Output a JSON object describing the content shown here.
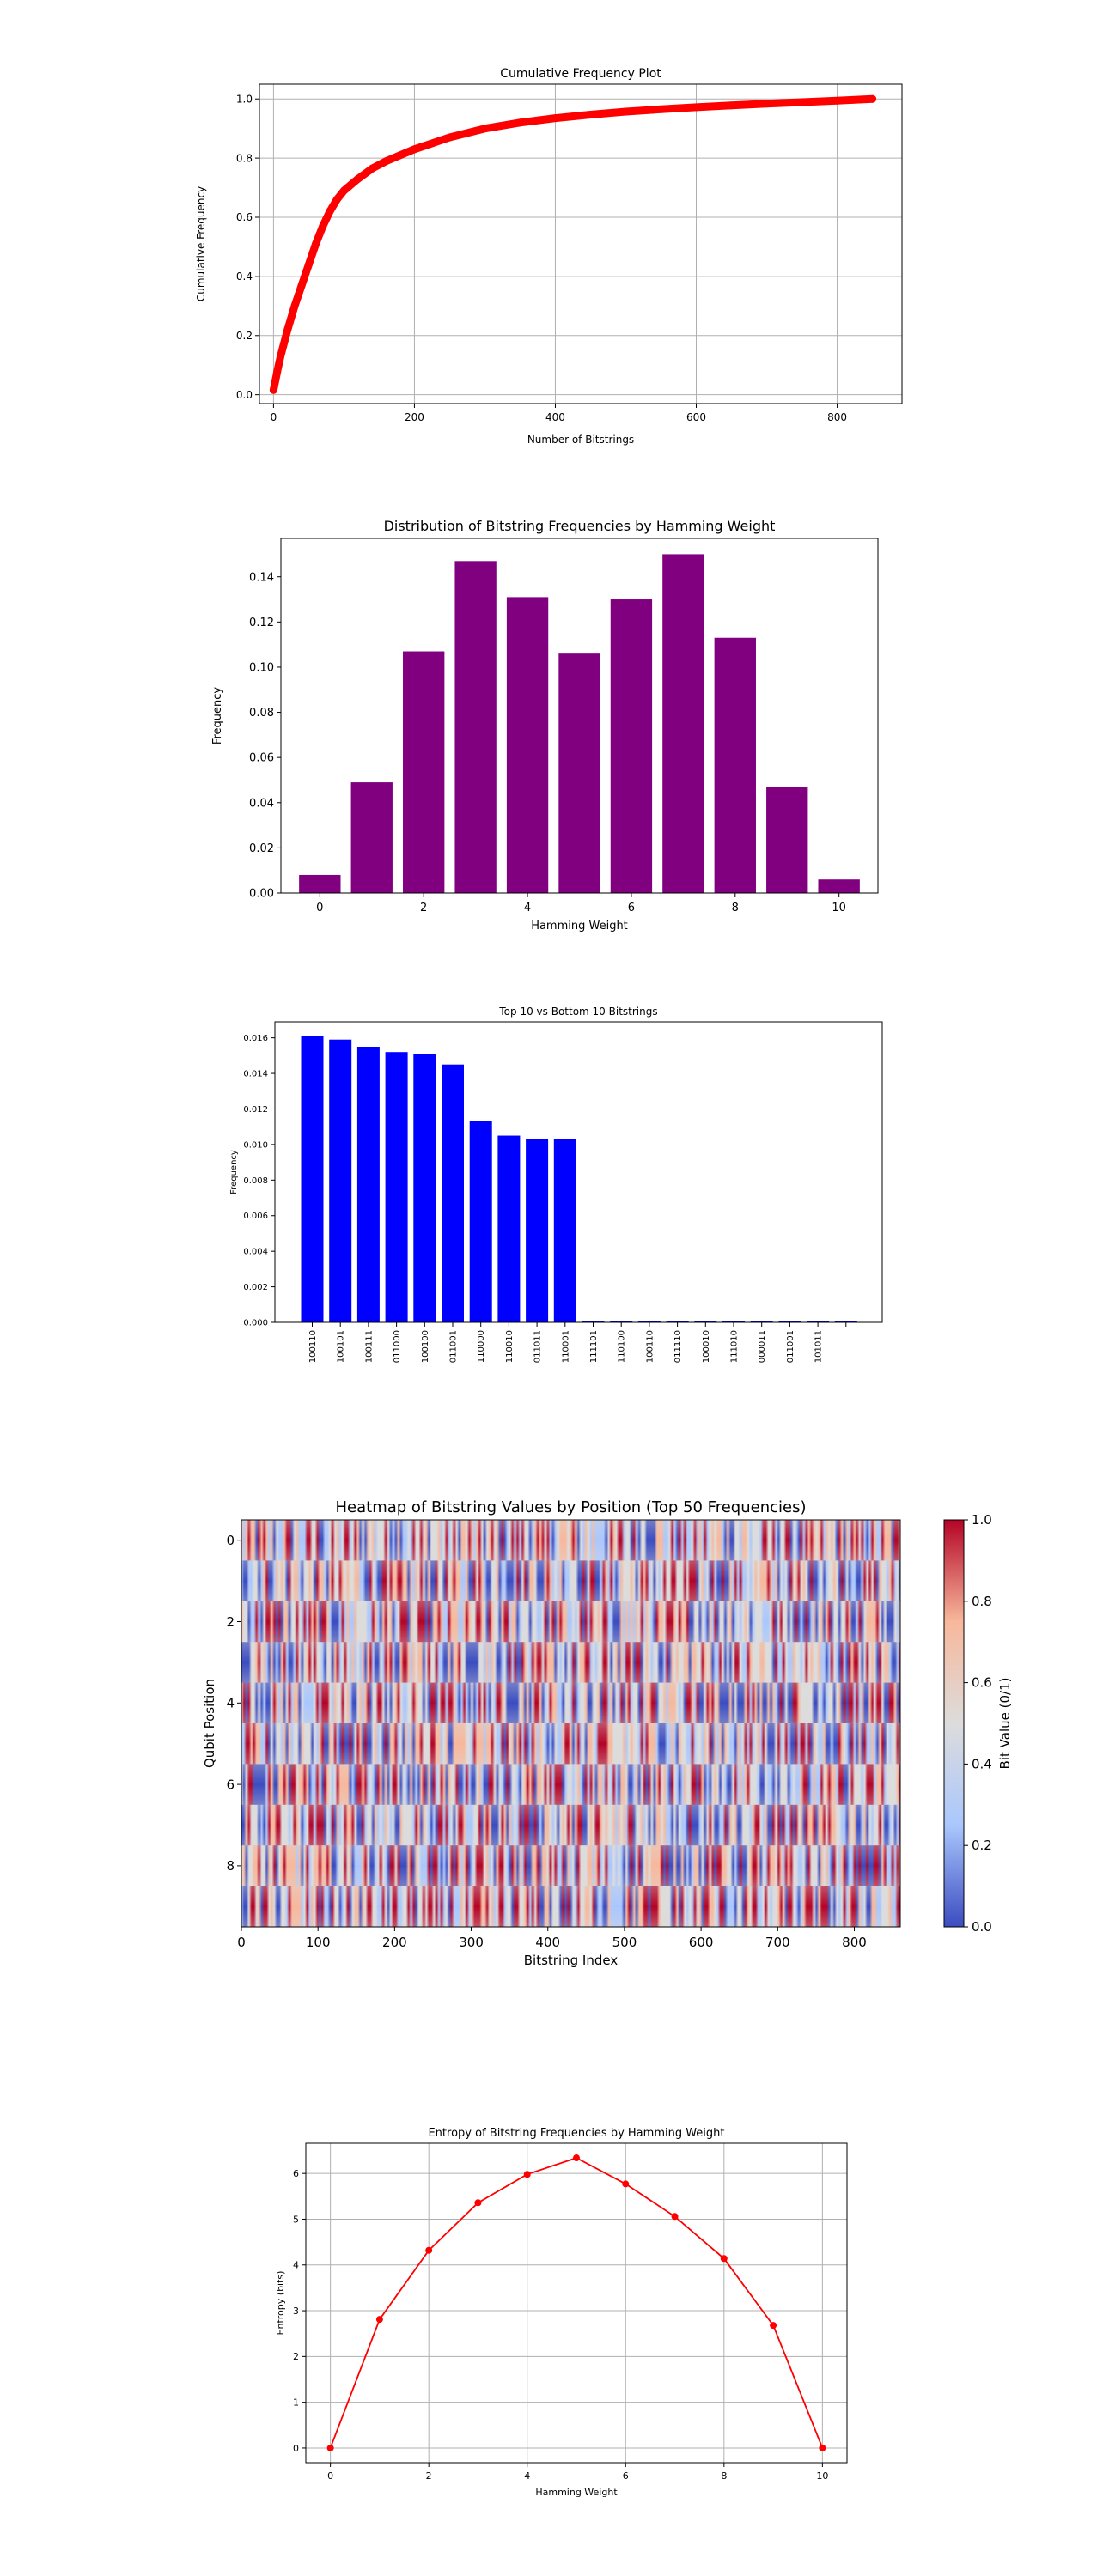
{
  "chart_data": [
    {
      "type": "line",
      "title": "Cumulative Frequency Plot",
      "xlabel": "Number of Bitstrings",
      "ylabel": "Cumulative Frequency",
      "xlim": [
        -20,
        892
      ],
      "ylim": [
        -0.03,
        1.05
      ],
      "xticks": [
        0,
        200,
        400,
        600,
        800
      ],
      "yticks": [
        0.0,
        0.2,
        0.4,
        0.6,
        0.8,
        1.0
      ],
      "xtick_labels": [
        "0",
        "200",
        "400",
        "600",
        "800"
      ],
      "ytick_labels": [
        "0.0",
        "0.2",
        "0.4",
        "0.6",
        "0.8",
        "1.0"
      ],
      "grid": true,
      "color": "#ff0000",
      "series": [
        {
          "x": [
            0,
            5,
            10,
            20,
            30,
            40,
            50,
            60,
            70,
            80,
            90,
            100,
            120,
            140,
            160,
            180,
            200,
            250,
            300,
            350,
            400,
            450,
            500,
            550,
            600,
            650,
            700,
            750,
            800,
            850
          ],
          "y": [
            0.016,
            0.075,
            0.13,
            0.22,
            0.3,
            0.37,
            0.44,
            0.51,
            0.57,
            0.62,
            0.66,
            0.69,
            0.73,
            0.765,
            0.79,
            0.81,
            0.83,
            0.87,
            0.9,
            0.92,
            0.935,
            0.947,
            0.957,
            0.965,
            0.972,
            0.978,
            0.984,
            0.989,
            0.994,
            1.0
          ]
        }
      ]
    },
    {
      "type": "bar",
      "title": "Distribution of Bitstring Frequencies by Hamming Weight",
      "xlabel": "Hamming Weight",
      "ylabel": "Frequency",
      "x": [
        0,
        1,
        2,
        3,
        4,
        5,
        6,
        7,
        8,
        9,
        10
      ],
      "values": [
        0.008,
        0.049,
        0.107,
        0.147,
        0.131,
        0.106,
        0.13,
        0.15,
        0.113,
        0.047,
        0.006
      ],
      "xlim": [
        -0.75,
        10.75
      ],
      "ylim": [
        0,
        0.157
      ],
      "xticks": [
        0,
        2,
        4,
        6,
        8,
        10
      ],
      "yticks": [
        0.0,
        0.02,
        0.04,
        0.06,
        0.08,
        0.1,
        0.12,
        0.14
      ],
      "xtick_labels": [
        "0",
        "2",
        "4",
        "6",
        "8",
        "10"
      ],
      "ytick_labels": [
        "0.00",
        "0.02",
        "0.04",
        "0.06",
        "0.08",
        "0.10",
        "0.12",
        "0.14"
      ],
      "color": "#800080",
      "grid": false
    },
    {
      "type": "bar",
      "title": "Top 10 vs Bottom 10 Bitstrings",
      "xlabel": "",
      "ylabel": "Frequency",
      "categories": [
        "100110",
        "100101",
        "100111",
        "011000",
        "100100",
        "011001",
        "110000",
        "110010",
        "011011",
        "110001",
        "111101",
        "110100",
        "100110",
        "011110",
        "100010",
        "111010",
        "000011",
        "011001",
        "101011",
        ""
      ],
      "values": [
        0.0161,
        0.0159,
        0.0155,
        0.0152,
        0.0151,
        0.0145,
        0.0113,
        0.0105,
        0.0103,
        0.0103,
        5e-05,
        5e-05,
        5e-05,
        5e-05,
        5e-05,
        5e-05,
        5e-05,
        5e-05,
        5e-05,
        5e-05
      ],
      "ylim": [
        0,
        0.0169
      ],
      "yticks": [
        0.0,
        0.002,
        0.004,
        0.006,
        0.008,
        0.01,
        0.012,
        0.014,
        0.016
      ],
      "ytick_labels": [
        "0.000",
        "0.002",
        "0.004",
        "0.006",
        "0.008",
        "0.010",
        "0.012",
        "0.014",
        "0.016"
      ],
      "color": "#0000ff",
      "grid": false
    },
    {
      "type": "heatmap",
      "title": "Heatmap of Bitstring Values by Position (Top 50 Frequencies)",
      "xlabel": "Bitstring Index",
      "ylabel": "Qubit Position",
      "rows": 10,
      "columns": 860,
      "xticks": [
        0,
        100,
        200,
        300,
        400,
        500,
        600,
        700,
        800
      ],
      "yticks": [
        0,
        2,
        4,
        6,
        8
      ],
      "xtick_labels": [
        "0",
        "100",
        "200",
        "300",
        "400",
        "500",
        "600",
        "700",
        "800"
      ],
      "ytick_labels": [
        "0",
        "2",
        "4",
        "6",
        "8"
      ],
      "colormap": "coolwarm",
      "colormap_stops": [
        "#3b4cc0",
        "#aac7fd",
        "#dddcdc",
        "#f7b89c",
        "#b40426"
      ],
      "colorbar": {
        "label": "Bit Value (0/1)",
        "range": [
          0.0,
          1.0
        ],
        "ticks": [
          0.0,
          0.2,
          0.4,
          0.6,
          0.8,
          1.0
        ],
        "tick_labels": [
          "0.0",
          "0.2",
          "0.4",
          "0.6",
          "0.8",
          "1.0"
        ]
      }
    },
    {
      "type": "line",
      "title": "Entropy of Bitstring Frequencies by Hamming Weight",
      "xlabel": "Hamming Weight",
      "ylabel": "Entropy (bits)",
      "x": [
        0,
        1,
        2,
        3,
        4,
        5,
        6,
        7,
        8,
        9,
        10
      ],
      "values": [
        0.0,
        2.81,
        4.32,
        5.36,
        5.98,
        6.34,
        5.77,
        5.06,
        4.14,
        2.68,
        0.0
      ],
      "xlim": [
        -0.5,
        10.5
      ],
      "ylim": [
        -0.32,
        6.66
      ],
      "xticks": [
        0,
        2,
        4,
        6,
        8,
        10
      ],
      "yticks": [
        0,
        1,
        2,
        3,
        4,
        5,
        6
      ],
      "xtick_labels": [
        "0",
        "2",
        "4",
        "6",
        "8",
        "10"
      ],
      "ytick_labels": [
        "0",
        "1",
        "2",
        "3",
        "4",
        "5",
        "6"
      ],
      "grid": true,
      "color": "#ff0000"
    }
  ]
}
